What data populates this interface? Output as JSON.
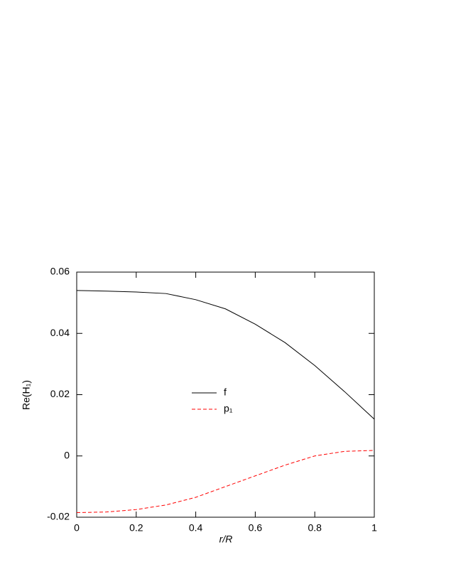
{
  "chart_data": {
    "type": "line",
    "x_label": "r/R",
    "y_label": "Re(H₁)",
    "x": [
      0,
      0.1,
      0.2,
      0.3,
      0.4,
      0.5,
      0.6,
      0.7,
      0.8,
      0.9,
      1
    ],
    "series": [
      {
        "name": "f",
        "color": "#000000",
        "dash": false,
        "values": [
          0.054,
          0.0538,
          0.0535,
          0.053,
          0.051,
          0.048,
          0.043,
          0.037,
          0.0295,
          0.021,
          0.012
        ]
      },
      {
        "name": "p₁",
        "color": "#ff0000",
        "dash": true,
        "values": [
          -0.0185,
          -0.0183,
          -0.0175,
          -0.016,
          -0.0135,
          -0.01,
          -0.0065,
          -0.003,
          0,
          0.0015,
          0.0018
        ]
      }
    ],
    "xlim": [
      0,
      1
    ],
    "xticks": [
      0,
      0.2,
      0.4,
      0.6,
      0.8,
      1
    ],
    "ylim": [
      -0.02,
      0.06
    ],
    "yticks": [
      -0.02,
      0,
      0.02,
      0.04,
      0.06
    ],
    "grid": false
  }
}
